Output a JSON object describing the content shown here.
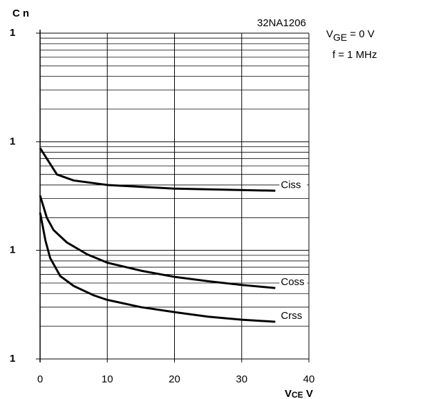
{
  "chart_data": {
    "type": "line",
    "log_y": true,
    "grid": true,
    "minor_grid": true,
    "color": "#000000",
    "ylabel": "C n",
    "xlabel": {
      "symbol": "V",
      "subscript": "CE",
      "unit": "V"
    },
    "code": "32NA1206",
    "condition_vge": {
      "symbol": "V",
      "subscript": "GE",
      "text": " = 0 V"
    },
    "condition_f": "f = 1 MHz",
    "xlim": [
      0,
      40
    ],
    "xticks": [
      0,
      10,
      20,
      30,
      40
    ],
    "ylim": [
      0.01,
      10
    ],
    "yticks": [
      {
        "value": 0.01,
        "label": "1"
      },
      {
        "value": 0.1,
        "label": "1"
      },
      {
        "value": 1,
        "label": "1"
      },
      {
        "value": 10,
        "label": "1"
      }
    ],
    "series": [
      {
        "name": "Ciss",
        "x": [
          0,
          2.5,
          5,
          10,
          20,
          35
        ],
        "values": [
          0.875,
          0.5,
          0.44,
          0.4,
          0.37,
          0.354
        ]
      },
      {
        "name": "Coss",
        "x": [
          0,
          1,
          2,
          4,
          7,
          10,
          15,
          20,
          25,
          30,
          35
        ],
        "values": [
          0.32,
          0.2,
          0.154,
          0.118,
          0.092,
          0.077,
          0.065,
          0.057,
          0.052,
          0.048,
          0.045
        ]
      },
      {
        "name": "Crss",
        "x": [
          0,
          0.8,
          1.5,
          3,
          5,
          8,
          10,
          15,
          20,
          25,
          30,
          35
        ],
        "values": [
          0.223,
          0.123,
          0.085,
          0.058,
          0.047,
          0.0385,
          0.035,
          0.03,
          0.027,
          0.0245,
          0.023,
          0.022
        ]
      }
    ]
  }
}
